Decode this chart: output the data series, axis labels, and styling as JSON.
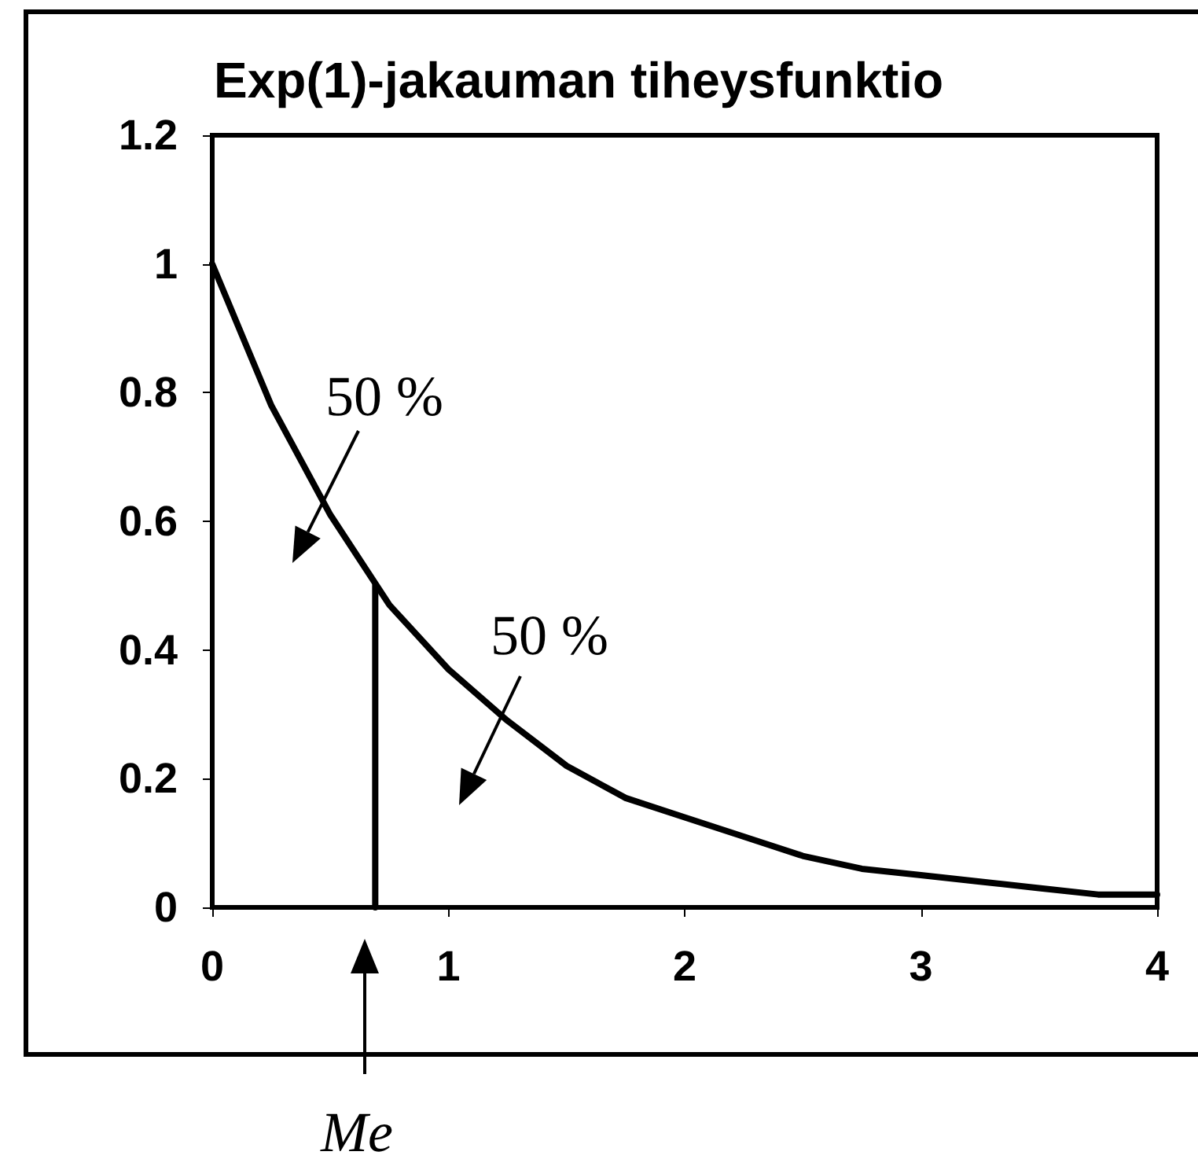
{
  "chart_data": {
    "type": "line",
    "title": "Exp(1)-jakauman tiheysfunktio",
    "x": [
      0,
      0.25,
      0.5,
      0.75,
      1,
      1.25,
      1.5,
      1.75,
      2,
      2.25,
      2.5,
      2.75,
      3,
      3.25,
      3.5,
      3.75,
      4
    ],
    "series": [
      {
        "color": "#000000",
        "values": [
          1,
          0.78,
          0.61,
          0.47,
          0.37,
          0.29,
          0.22,
          0.17,
          0.14,
          0.11,
          0.08,
          0.06,
          0.05,
          0.04,
          0.03,
          0.02,
          0.02
        ]
      },
      {
        "type": "line",
        "color": "#000000",
        "x": [
          0.69,
          0.69
        ],
        "values": [
          0,
          0.5
        ]
      }
    ],
    "xlim": [
      0,
      4
    ],
    "xticks": [
      0,
      1,
      2,
      3,
      4
    ],
    "ylim": [
      0,
      1.2
    ],
    "yticks": [
      0,
      0.2,
      0.4,
      0.6,
      0.8,
      1,
      1.2
    ],
    "annotations": [
      "50 %",
      "50 %",
      "Me"
    ],
    "grid": false,
    "marker": "none",
    "line_style": "solid"
  }
}
